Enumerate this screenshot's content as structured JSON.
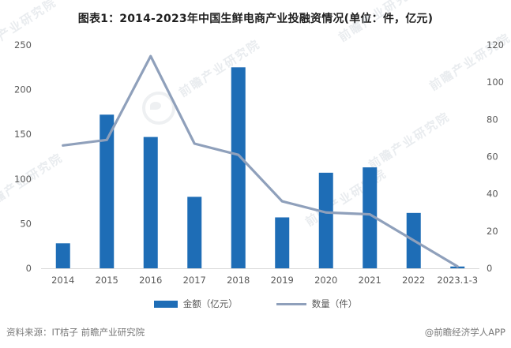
{
  "title": "图表1：2014-2023年中国生鲜电商产业投融资情况(单位：件，亿元)",
  "chart_data": {
    "type": "bar",
    "subtype": "combo-bar-line-dual-axis",
    "categories": [
      "2014",
      "2015",
      "2016",
      "2017",
      "2018",
      "2019",
      "2020",
      "2021",
      "2022",
      "2023.1-3"
    ],
    "series": [
      {
        "name": "金额（亿元）",
        "kind": "bar",
        "axis": "left",
        "color": "#1e6db6",
        "values": [
          28,
          172,
          147,
          80,
          225,
          57,
          107,
          113,
          62,
          2
        ]
      },
      {
        "name": "数量（件）",
        "kind": "line",
        "axis": "right",
        "color": "#8fa0bb",
        "values": [
          66,
          69,
          114,
          67,
          61,
          36,
          30,
          29,
          15,
          1
        ]
      }
    ],
    "left_axis": {
      "min": 0,
      "max": 250,
      "ticks": [
        0,
        50,
        100,
        150,
        200,
        250
      ]
    },
    "right_axis": {
      "min": 0,
      "max": 120,
      "ticks": [
        0,
        20,
        40,
        60,
        80,
        100,
        120
      ]
    },
    "grid": false,
    "legend_position": "bottom",
    "title": "图表1：2014-2023年中国生鲜电商产业投融资情况(单位：件，亿元)"
  },
  "legend": {
    "amount_label": "金额（亿元）",
    "count_label": "数量（件）"
  },
  "footer": {
    "source": "资料来源：IT桔子 前瞻产业研究院",
    "credit": "@前瞻经济学人APP"
  },
  "watermark": {
    "text": "前瞻产业研究院"
  },
  "colors": {
    "bar": "#1e6db6",
    "line": "#8fa0bb",
    "axis_line": "#d9d9d9",
    "tick_text": "#595959",
    "title_text": "#1f1f1f",
    "footer_text": "#7a7a7a",
    "watermark_text": "#7d8ca0"
  }
}
